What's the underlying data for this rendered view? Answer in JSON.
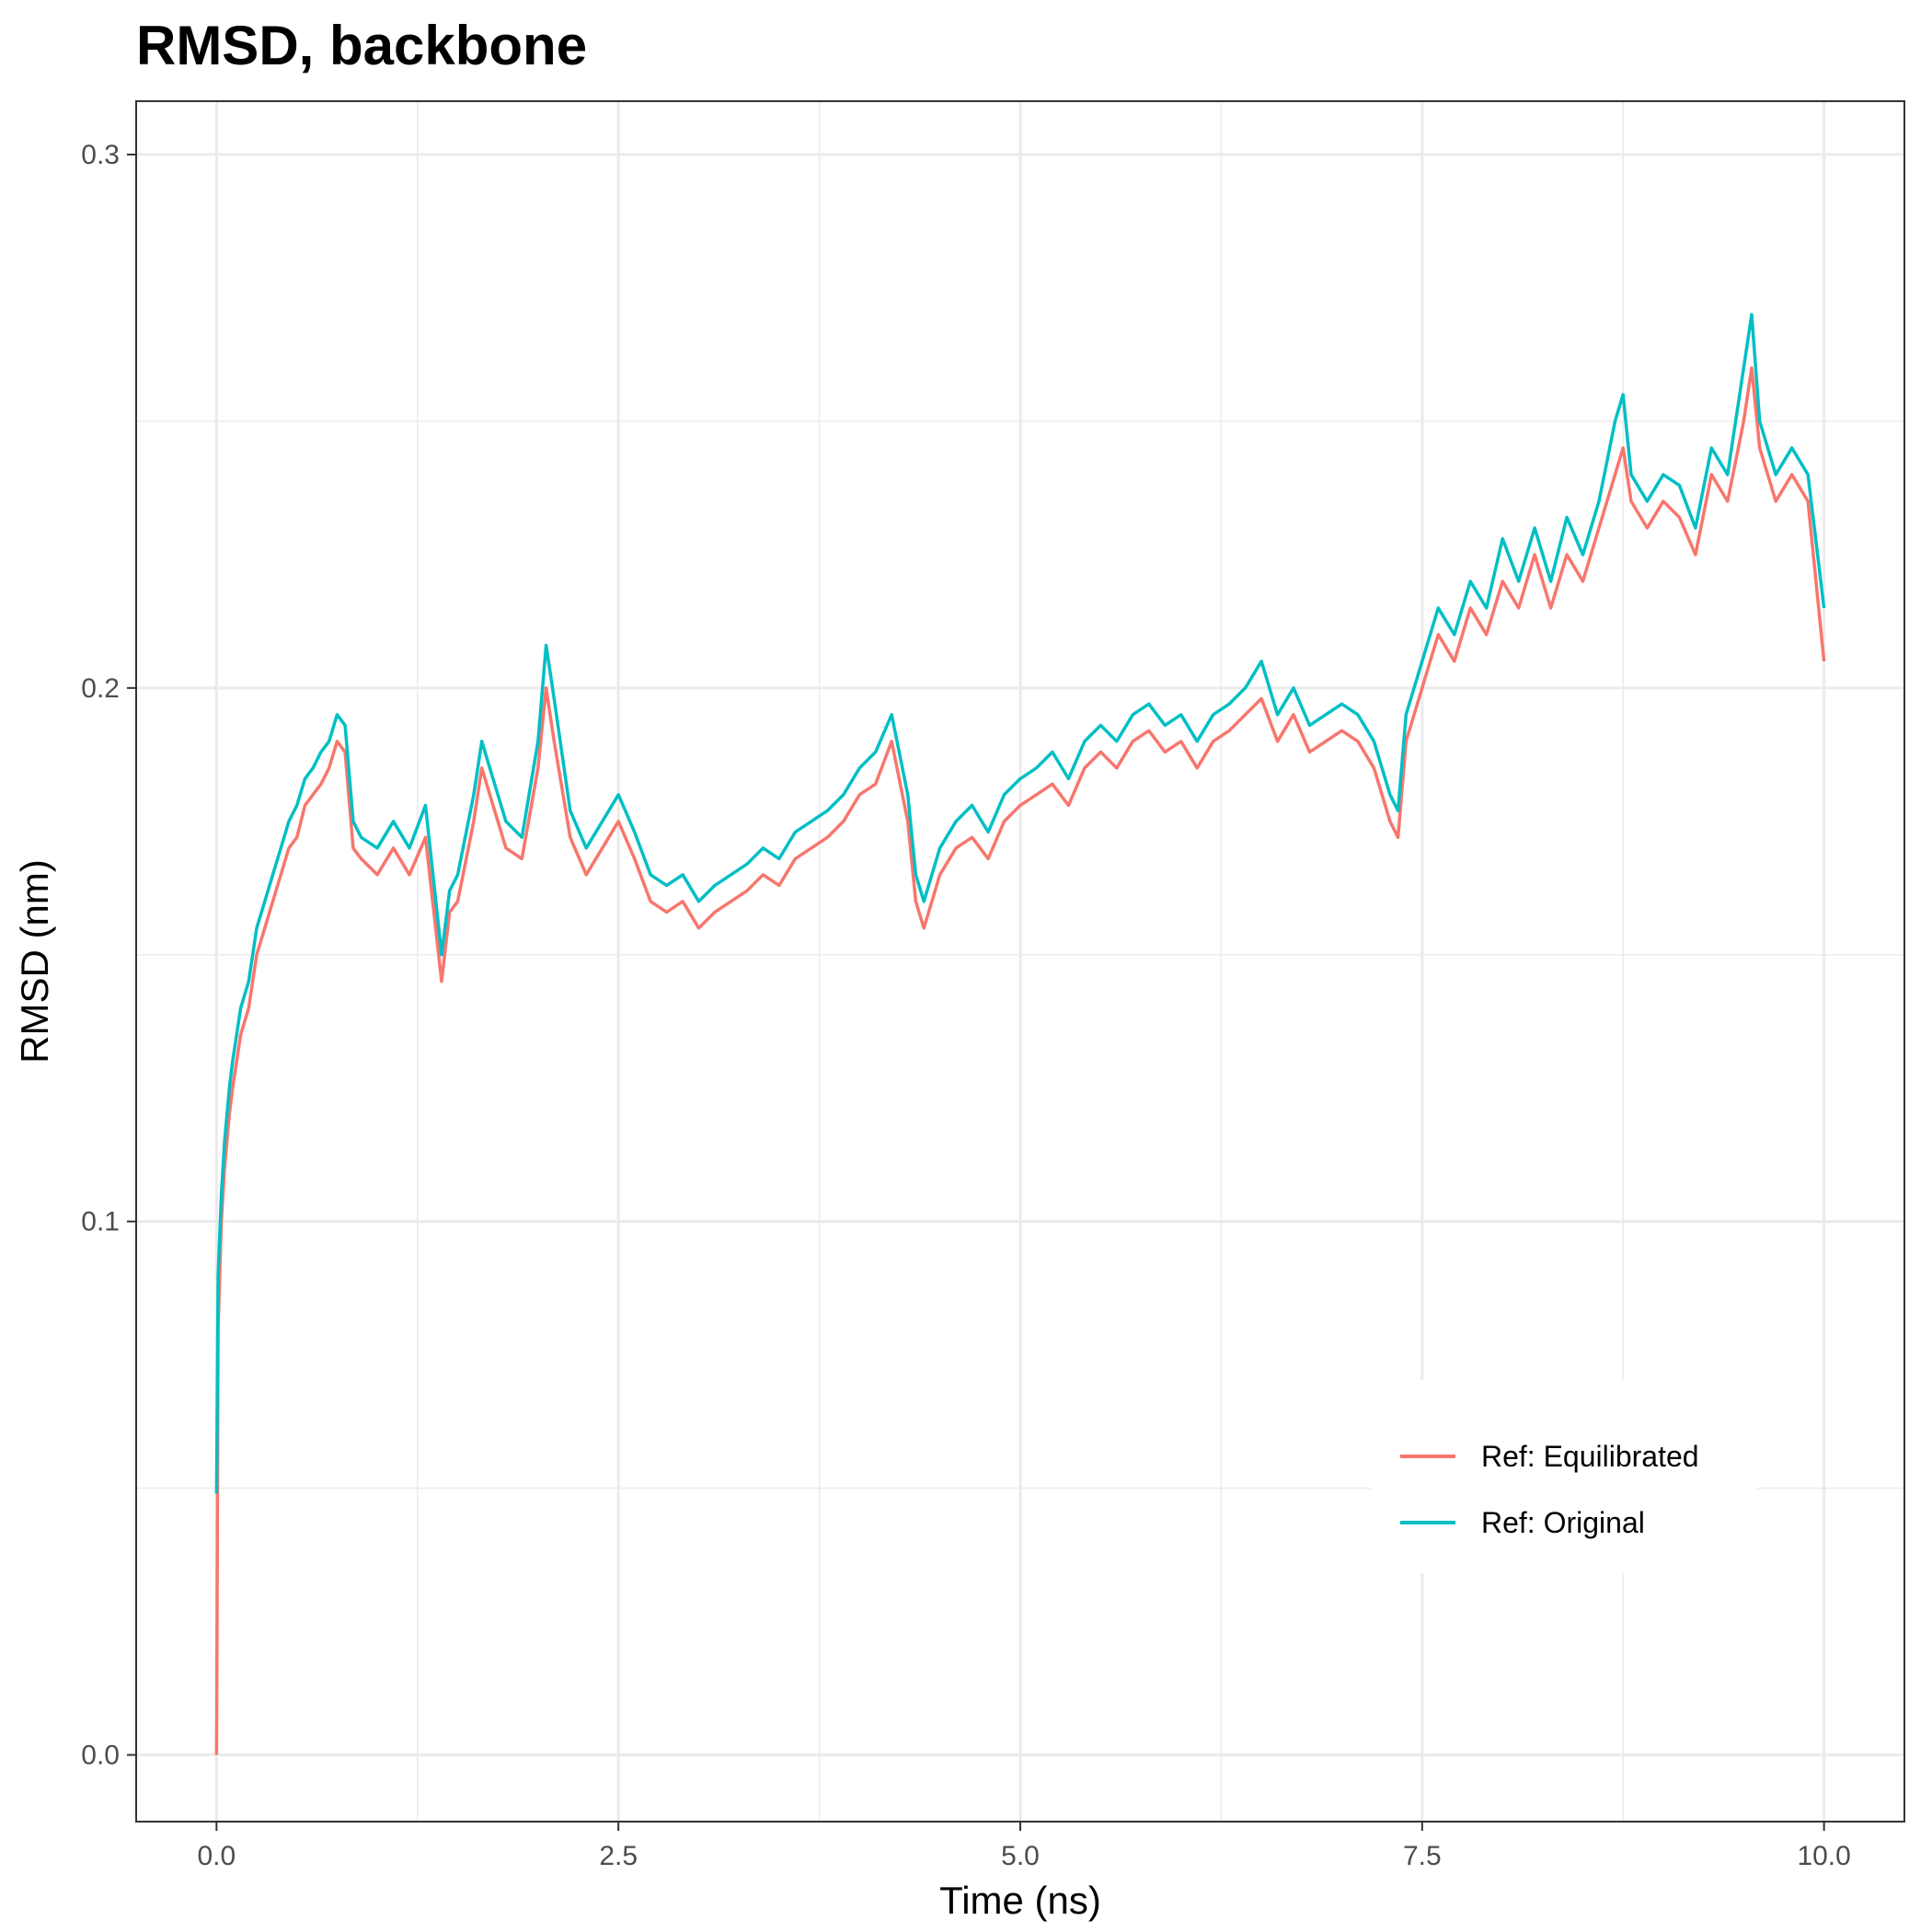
{
  "chart_data": {
    "type": "line",
    "title": "RMSD, backbone",
    "xlabel": "Time (ns)",
    "ylabel": "RMSD (nm)",
    "xlim": [
      -0.5,
      10.5
    ],
    "ylim": [
      -0.0125,
      0.31
    ],
    "x_ticks": [
      0.0,
      2.5,
      5.0,
      7.5,
      10.0
    ],
    "x_tick_labels": [
      "0.0",
      "2.5",
      "5.0",
      "7.5",
      "10.0"
    ],
    "y_ticks": [
      0.0,
      0.1,
      0.2,
      0.3
    ],
    "y_tick_labels": [
      "0.0",
      "0.1",
      "0.2",
      "0.3"
    ],
    "grid": true,
    "legend_position": "bottom-right",
    "series": [
      {
        "name": "Ref: Equilibrated",
        "color": "#F8766D",
        "x": [
          0,
          0.01,
          0.03,
          0.05,
          0.08,
          0.1,
          0.15,
          0.2,
          0.25,
          0.3,
          0.35,
          0.4,
          0.45,
          0.5,
          0.55,
          0.6,
          0.65,
          0.7,
          0.75,
          0.8,
          0.85,
          0.9,
          1.0,
          1.1,
          1.2,
          1.3,
          1.4,
          1.45,
          1.5,
          1.6,
          1.65,
          1.7,
          1.8,
          1.9,
          2.0,
          2.05,
          2.1,
          2.2,
          2.3,
          2.4,
          2.5,
          2.6,
          2.7,
          2.8,
          2.9,
          3.0,
          3.1,
          3.2,
          3.3,
          3.4,
          3.5,
          3.6,
          3.7,
          3.8,
          3.9,
          4.0,
          4.1,
          4.2,
          4.3,
          4.35,
          4.4,
          4.5,
          4.6,
          4.7,
          4.8,
          4.9,
          5.0,
          5.1,
          5.2,
          5.3,
          5.4,
          5.5,
          5.6,
          5.7,
          5.8,
          5.9,
          6.0,
          6.1,
          6.2,
          6.3,
          6.4,
          6.5,
          6.6,
          6.7,
          6.8,
          6.9,
          7.0,
          7.1,
          7.2,
          7.3,
          7.35,
          7.4,
          7.5,
          7.6,
          7.7,
          7.8,
          7.9,
          8.0,
          8.1,
          8.2,
          8.3,
          8.4,
          8.5,
          8.6,
          8.7,
          8.75,
          8.8,
          8.9,
          9.0,
          9.1,
          9.2,
          9.3,
          9.4,
          9.5,
          9.55,
          9.6,
          9.7,
          9.8,
          9.9,
          10.0
        ],
        "y": [
          0.0,
          0.08,
          0.1,
          0.11,
          0.12,
          0.125,
          0.135,
          0.14,
          0.15,
          0.155,
          0.16,
          0.165,
          0.17,
          0.172,
          0.178,
          0.18,
          0.182,
          0.185,
          0.19,
          0.188,
          0.17,
          0.168,
          0.165,
          0.17,
          0.165,
          0.172,
          0.145,
          0.158,
          0.16,
          0.175,
          0.185,
          0.18,
          0.17,
          0.168,
          0.185,
          0.2,
          0.19,
          0.172,
          0.165,
          0.17,
          0.175,
          0.168,
          0.16,
          0.158,
          0.16,
          0.155,
          0.158,
          0.16,
          0.162,
          0.165,
          0.163,
          0.168,
          0.17,
          0.172,
          0.175,
          0.18,
          0.182,
          0.19,
          0.175,
          0.16,
          0.155,
          0.165,
          0.17,
          0.172,
          0.168,
          0.175,
          0.178,
          0.18,
          0.182,
          0.178,
          0.185,
          0.188,
          0.185,
          0.19,
          0.192,
          0.188,
          0.19,
          0.185,
          0.19,
          0.192,
          0.195,
          0.198,
          0.19,
          0.195,
          0.188,
          0.19,
          0.192,
          0.19,
          0.185,
          0.175,
          0.172,
          0.19,
          0.2,
          0.21,
          0.205,
          0.215,
          0.21,
          0.22,
          0.215,
          0.225,
          0.215,
          0.225,
          0.22,
          0.23,
          0.24,
          0.245,
          0.235,
          0.23,
          0.235,
          0.232,
          0.225,
          0.24,
          0.235,
          0.25,
          0.26,
          0.245,
          0.235,
          0.24,
          0.235,
          0.205
        ]
      },
      {
        "name": "Ref: Original",
        "color": "#00BFC4",
        "x": [
          0,
          0.01,
          0.03,
          0.05,
          0.08,
          0.1,
          0.15,
          0.2,
          0.25,
          0.3,
          0.35,
          0.4,
          0.45,
          0.5,
          0.55,
          0.6,
          0.65,
          0.7,
          0.75,
          0.8,
          0.85,
          0.9,
          1.0,
          1.1,
          1.2,
          1.3,
          1.4,
          1.45,
          1.5,
          1.6,
          1.65,
          1.7,
          1.8,
          1.9,
          2.0,
          2.05,
          2.1,
          2.2,
          2.3,
          2.4,
          2.5,
          2.6,
          2.7,
          2.8,
          2.9,
          3.0,
          3.1,
          3.2,
          3.3,
          3.4,
          3.5,
          3.6,
          3.7,
          3.8,
          3.9,
          4.0,
          4.1,
          4.2,
          4.3,
          4.35,
          4.4,
          4.5,
          4.6,
          4.7,
          4.8,
          4.9,
          5.0,
          5.1,
          5.2,
          5.3,
          5.4,
          5.5,
          5.6,
          5.7,
          5.8,
          5.9,
          6.0,
          6.1,
          6.2,
          6.3,
          6.4,
          6.5,
          6.6,
          6.7,
          6.8,
          6.9,
          7.0,
          7.1,
          7.2,
          7.3,
          7.35,
          7.4,
          7.5,
          7.6,
          7.7,
          7.8,
          7.9,
          8.0,
          8.1,
          8.2,
          8.3,
          8.4,
          8.5,
          8.6,
          8.7,
          8.75,
          8.8,
          8.9,
          9.0,
          9.1,
          9.2,
          9.3,
          9.4,
          9.5,
          9.55,
          9.6,
          9.7,
          9.8,
          9.9,
          10.0
        ],
        "y": [
          0.049,
          0.09,
          0.105,
          0.115,
          0.125,
          0.13,
          0.14,
          0.145,
          0.155,
          0.16,
          0.165,
          0.17,
          0.175,
          0.178,
          0.183,
          0.185,
          0.188,
          0.19,
          0.195,
          0.193,
          0.175,
          0.172,
          0.17,
          0.175,
          0.17,
          0.178,
          0.15,
          0.162,
          0.165,
          0.18,
          0.19,
          0.185,
          0.175,
          0.172,
          0.19,
          0.208,
          0.198,
          0.177,
          0.17,
          0.175,
          0.18,
          0.173,
          0.165,
          0.163,
          0.165,
          0.16,
          0.163,
          0.165,
          0.167,
          0.17,
          0.168,
          0.173,
          0.175,
          0.177,
          0.18,
          0.185,
          0.188,
          0.195,
          0.18,
          0.165,
          0.16,
          0.17,
          0.175,
          0.178,
          0.173,
          0.18,
          0.183,
          0.185,
          0.188,
          0.183,
          0.19,
          0.193,
          0.19,
          0.195,
          0.197,
          0.193,
          0.195,
          0.19,
          0.195,
          0.197,
          0.2,
          0.205,
          0.195,
          0.2,
          0.193,
          0.195,
          0.197,
          0.195,
          0.19,
          0.18,
          0.177,
          0.195,
          0.205,
          0.215,
          0.21,
          0.22,
          0.215,
          0.228,
          0.22,
          0.23,
          0.22,
          0.232,
          0.225,
          0.235,
          0.25,
          0.255,
          0.24,
          0.235,
          0.24,
          0.238,
          0.23,
          0.245,
          0.24,
          0.26,
          0.27,
          0.25,
          0.24,
          0.245,
          0.24,
          0.215
        ]
      }
    ]
  }
}
